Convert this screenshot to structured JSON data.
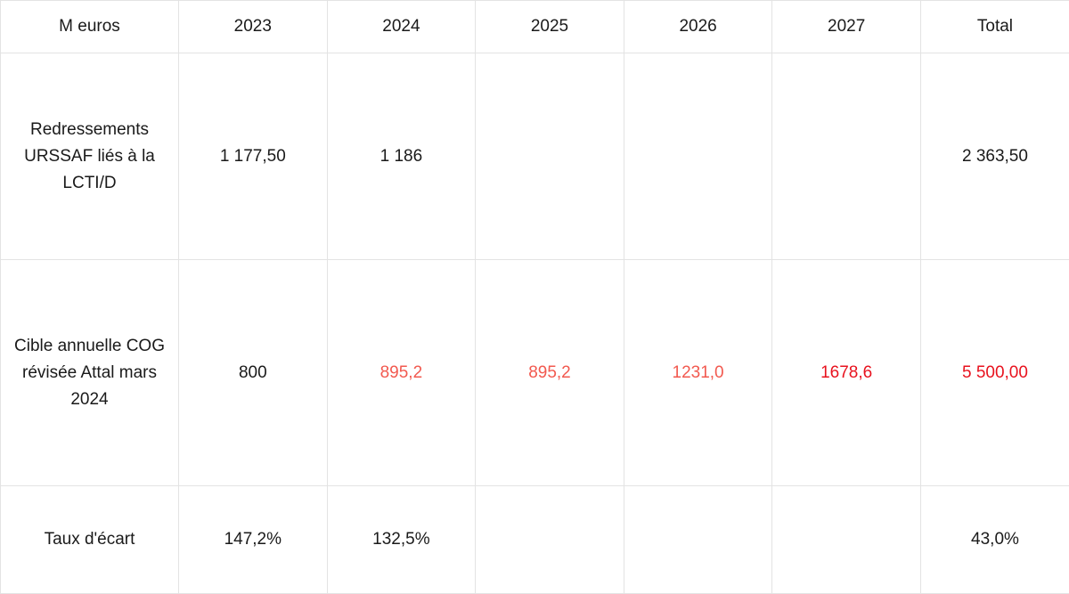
{
  "table": {
    "header": [
      "M euros",
      "2023",
      "2024",
      "2025",
      "2026",
      "2027",
      "Total"
    ],
    "rows": [
      {
        "label": "Redressements URSSAF liés à la LCTI/D",
        "cells": [
          "1 177,50",
          "1 186",
          "",
          "",
          "",
          "2 363,50"
        ]
      },
      {
        "label": "Cible annuelle COG révisée Attal mars 2024",
        "cells": [
          "800",
          "895,2",
          "895,2",
          "1231,0",
          "1678,6",
          "5 500,00"
        ]
      },
      {
        "label": "Taux d'écart",
        "cells": [
          "147,2%",
          "132,5%",
          "",
          "",
          "",
          "43,0%"
        ]
      }
    ]
  },
  "colors": {
    "text": "#1a1a1a",
    "light_red": "#f2594f",
    "strong_red": "#e8121e",
    "grid": "#e3e3e3"
  }
}
